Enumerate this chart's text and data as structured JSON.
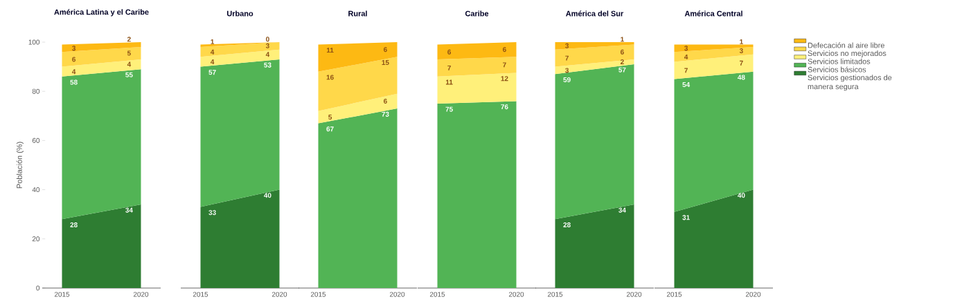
{
  "chart_data": [
    {
      "type": "area",
      "stacked": true,
      "title": "América Latina y el Caribe",
      "ylabel": "Población (%)",
      "categories": [
        "2015",
        "2020"
      ],
      "ylim": [
        0,
        100
      ],
      "yticks": [
        0,
        20,
        40,
        60,
        80,
        100
      ],
      "data_labels": true,
      "legend": false,
      "series": [
        {
          "color": "#2e7d32",
          "values": [
            28,
            34
          ]
        },
        {
          "color": "#52b455",
          "values": [
            58,
            55
          ]
        },
        {
          "color": "#fff07a",
          "values": [
            4,
            4
          ]
        },
        {
          "color": "#ffd84a",
          "values": [
            6,
            5
          ]
        },
        {
          "color": "#fdb913",
          "values": [
            3,
            2
          ]
        }
      ]
    },
    {
      "type": "area",
      "stacked": true,
      "title": "Urbano",
      "categories": [
        "2015",
        "2020"
      ],
      "ylim": [
        0,
        100
      ],
      "tick_labels": "x",
      "data_labels": true,
      "legend": false,
      "series": [
        {
          "color": "#2e7d32",
          "values": [
            33,
            40
          ]
        },
        {
          "color": "#52b455",
          "values": [
            57,
            53
          ]
        },
        {
          "color": "#fff07a",
          "values": [
            4,
            4
          ]
        },
        {
          "color": "#ffd84a",
          "values": [
            4,
            3
          ]
        },
        {
          "color": "#fdb913",
          "values": [
            1,
            0
          ]
        }
      ]
    },
    {
      "type": "area",
      "stacked": true,
      "title": "Rural",
      "categories": [
        "2015",
        "2020"
      ],
      "ylim": [
        0,
        100
      ],
      "tick_labels": "x",
      "data_labels": true,
      "legend": false,
      "series": [
        {
          "color": "#2e7d32",
          "values": [
            null,
            null
          ]
        },
        {
          "color": "#52b455",
          "values": [
            67,
            73
          ]
        },
        {
          "color": "#fff07a",
          "values": [
            5,
            6
          ]
        },
        {
          "color": "#ffd84a",
          "values": [
            16,
            15
          ]
        },
        {
          "color": "#fdb913",
          "values": [
            11,
            6
          ]
        }
      ]
    },
    {
      "type": "area",
      "stacked": true,
      "title": "Caribe",
      "categories": [
        "2015",
        "2020"
      ],
      "ylim": [
        0,
        100
      ],
      "tick_labels": "x",
      "legend": false,
      "series": [
        {
          "color": "#2e7d32",
          "values": [
            null,
            null
          ]
        },
        {
          "color": "#52b455",
          "values": [
            75,
            76
          ],
          "value_labels": [
            "75",
            "76"
          ]
        },
        {
          "color": "#fff07a",
          "values": [
            11,
            11.5
          ],
          "value_labels": [
            "11",
            "12"
          ]
        },
        {
          "color": "#ffd84a",
          "values": [
            7,
            6.5
          ],
          "value_labels": [
            "7",
            "7"
          ]
        },
        {
          "color": "#fdb913",
          "values": [
            6,
            6
          ],
          "value_labels": [
            "6",
            "6"
          ]
        }
      ]
    },
    {
      "type": "area",
      "stacked": true,
      "title": "América del Sur",
      "categories": [
        "2015",
        "2020"
      ],
      "ylim": [
        0,
        100
      ],
      "tick_labels": "x",
      "data_labels": true,
      "legend": false,
      "series": [
        {
          "color": "#2e7d32",
          "values": [
            28,
            34
          ]
        },
        {
          "color": "#52b455",
          "values": [
            59,
            57
          ]
        },
        {
          "color": "#fff07a",
          "values": [
            3,
            2
          ]
        },
        {
          "color": "#ffd84a",
          "values": [
            7,
            6
          ]
        },
        {
          "color": "#fdb913",
          "values": [
            3,
            1
          ]
        }
      ]
    },
    {
      "type": "area",
      "stacked": true,
      "title": "América Central",
      "categories": [
        "2015",
        "2020"
      ],
      "ylim": [
        0,
        100
      ],
      "tick_labels": "x",
      "data_labels": true,
      "legend": "right",
      "series": [
        {
          "name": "Servicios gestionados de manera segura",
          "color": "#2e7d32",
          "values": [
            31,
            40
          ]
        },
        {
          "name": "Servicios básicos",
          "color": "#52b455",
          "values": [
            54,
            48
          ]
        },
        {
          "name": "Servicios limitados",
          "color": "#fff07a",
          "values": [
            7,
            7
          ]
        },
        {
          "name": "Servicios no mejorados",
          "color": "#ffd84a",
          "values": [
            4,
            3
          ]
        },
        {
          "name": "Defecación al aire libre",
          "color": "#fdb913",
          "values": [
            3,
            1
          ]
        }
      ]
    }
  ]
}
